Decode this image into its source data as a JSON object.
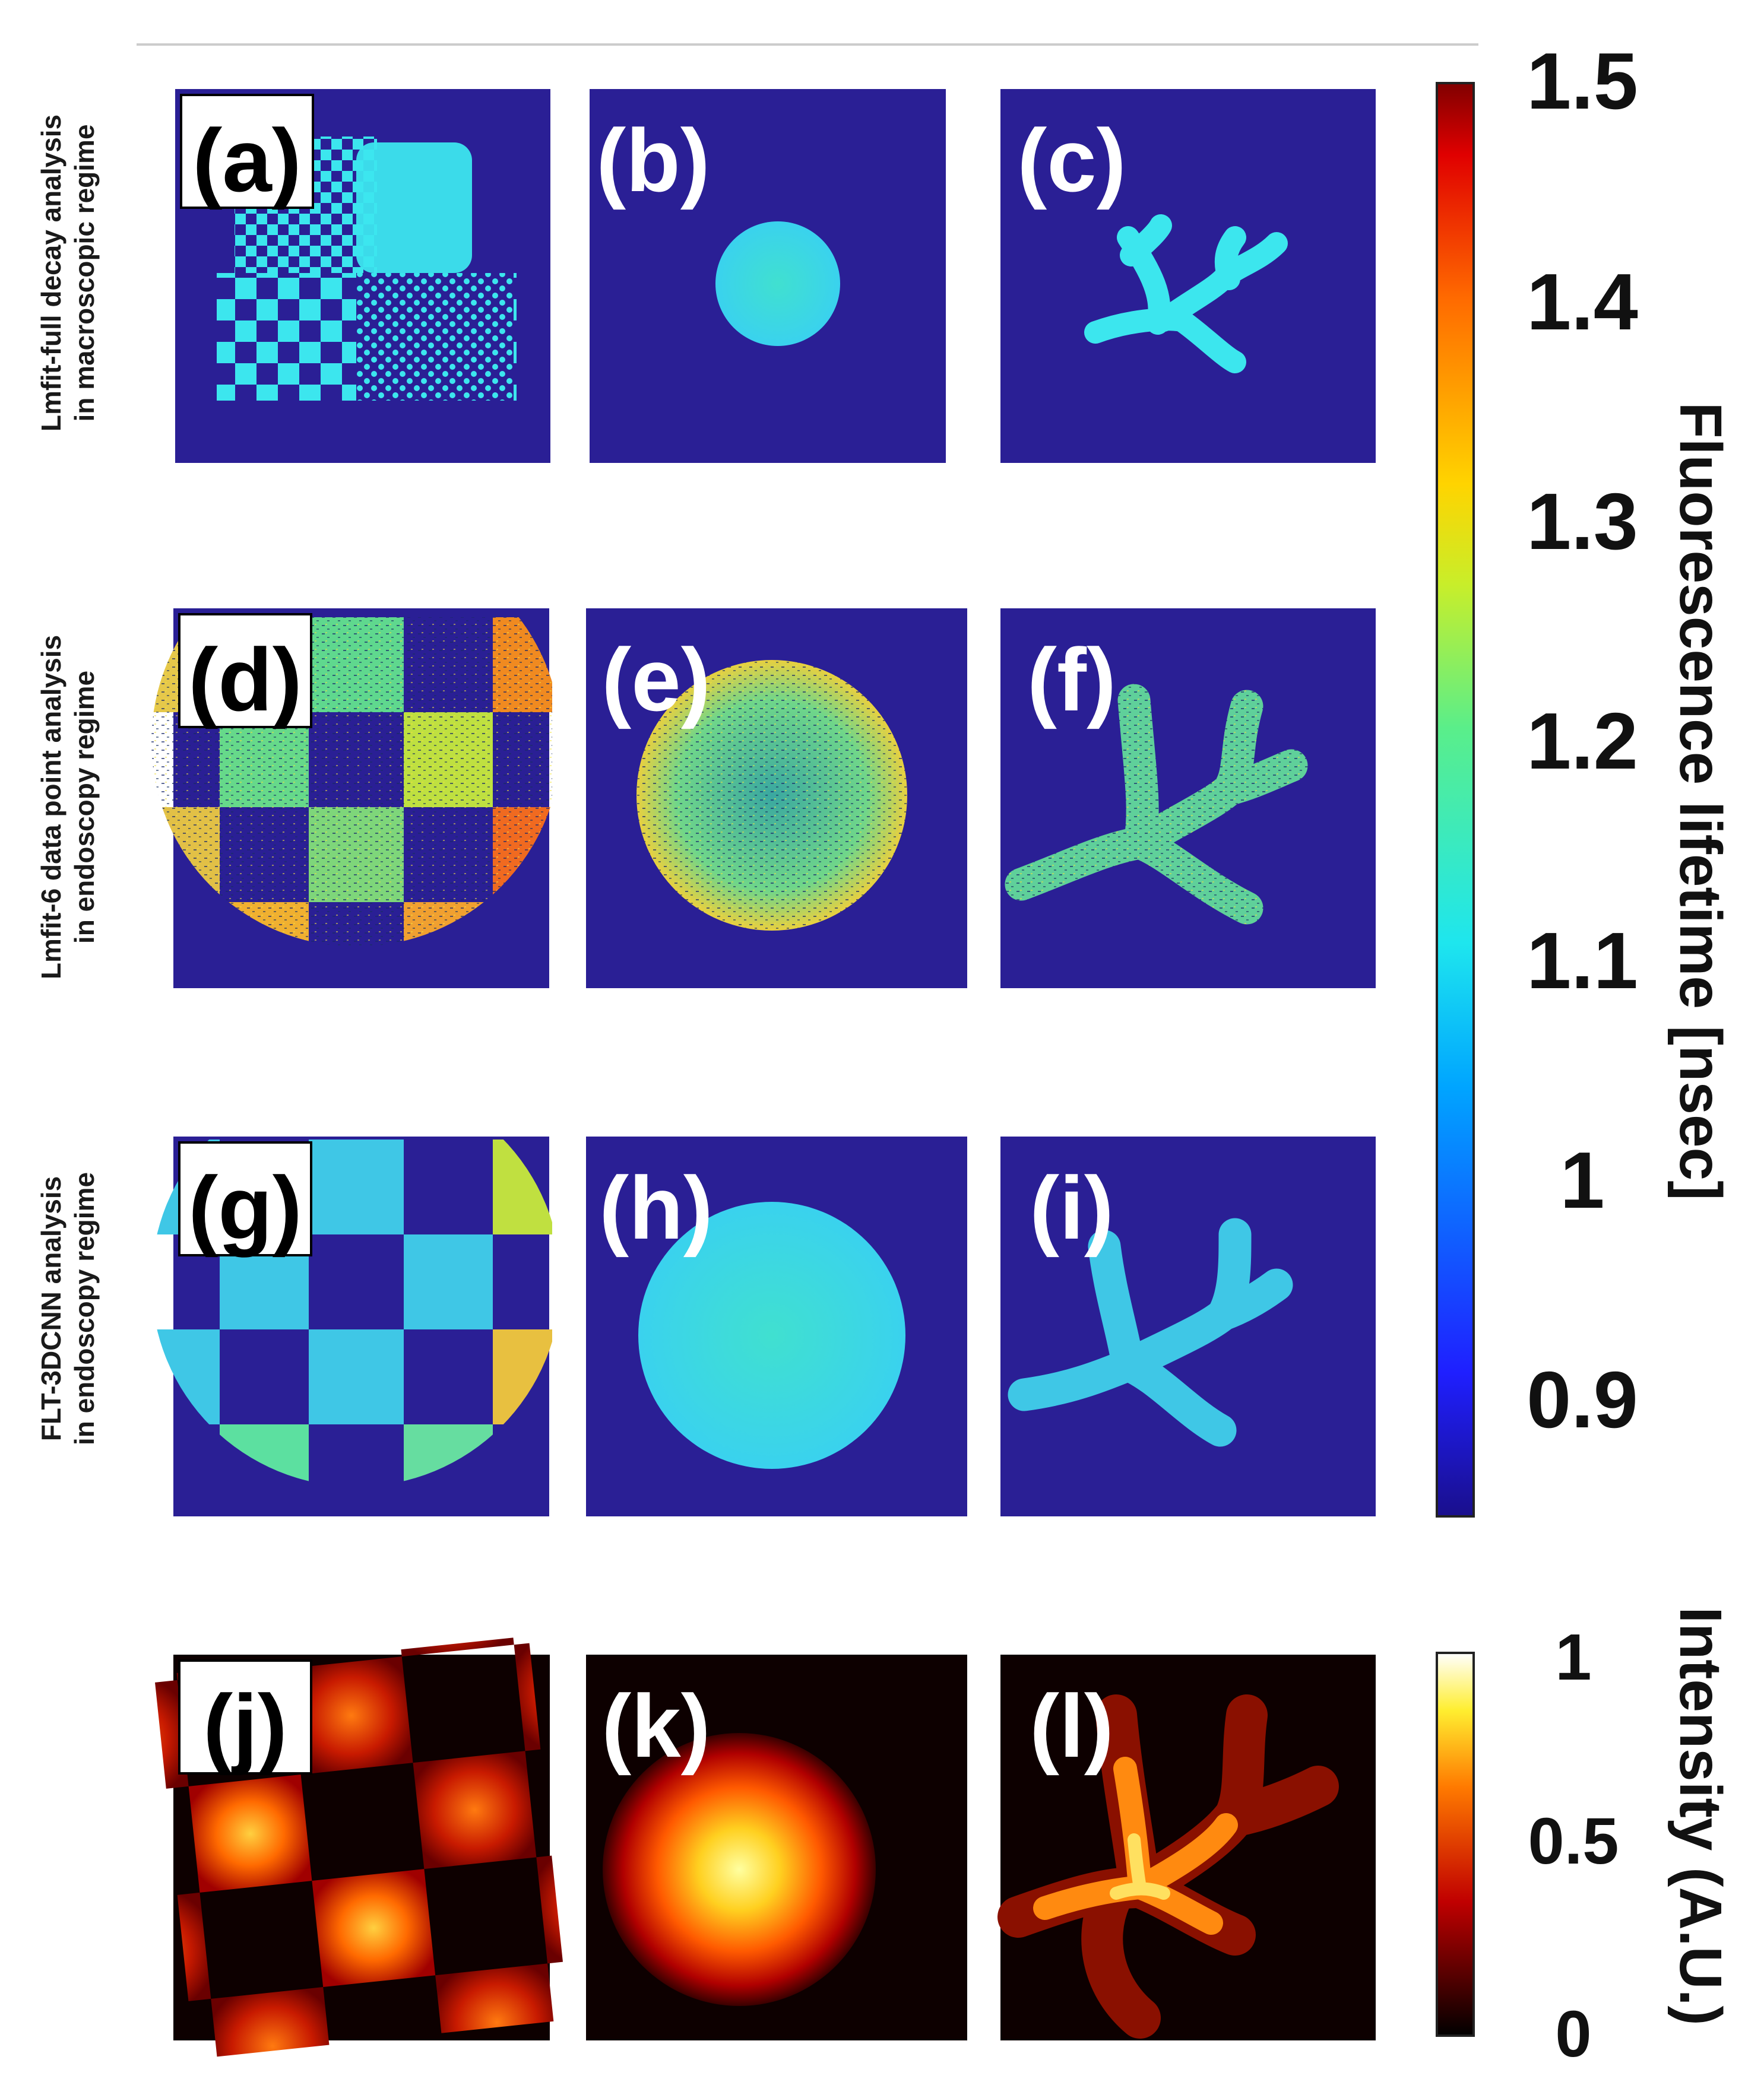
{
  "row_labels": [
    [
      "Lmfit-full decay analysis",
      "in macroscopic regime"
    ],
    [
      "Lmfit-6 data point analysis",
      "in endoscopy regime"
    ],
    [
      "FLT-3DCNN analysis",
      "in endoscopy regime"
    ]
  ],
  "panels": [
    "(a)",
    "(b)",
    "(c)",
    "(d)",
    "(e)",
    "(f)",
    "(g)",
    "(h)",
    "(i)",
    "(j)",
    "(k)",
    "(l)"
  ],
  "lifetime_colorbar": {
    "title": "Fluorescence lifetime [nsec]",
    "ticks": [
      "1.5",
      "1.4",
      "1.3",
      "1.2",
      "1.1",
      "1",
      "0.9"
    ],
    "colormap": "jet"
  },
  "intensity_colorbar": {
    "title": "Intensity (A.U.)",
    "ticks": [
      "1",
      "0.5",
      "0"
    ],
    "colormap": "hot"
  },
  "colors": {
    "background_blue": "#2a1f95",
    "lifetime_cyan": "#3ce6ee",
    "intensity_black": "#0d0000"
  }
}
